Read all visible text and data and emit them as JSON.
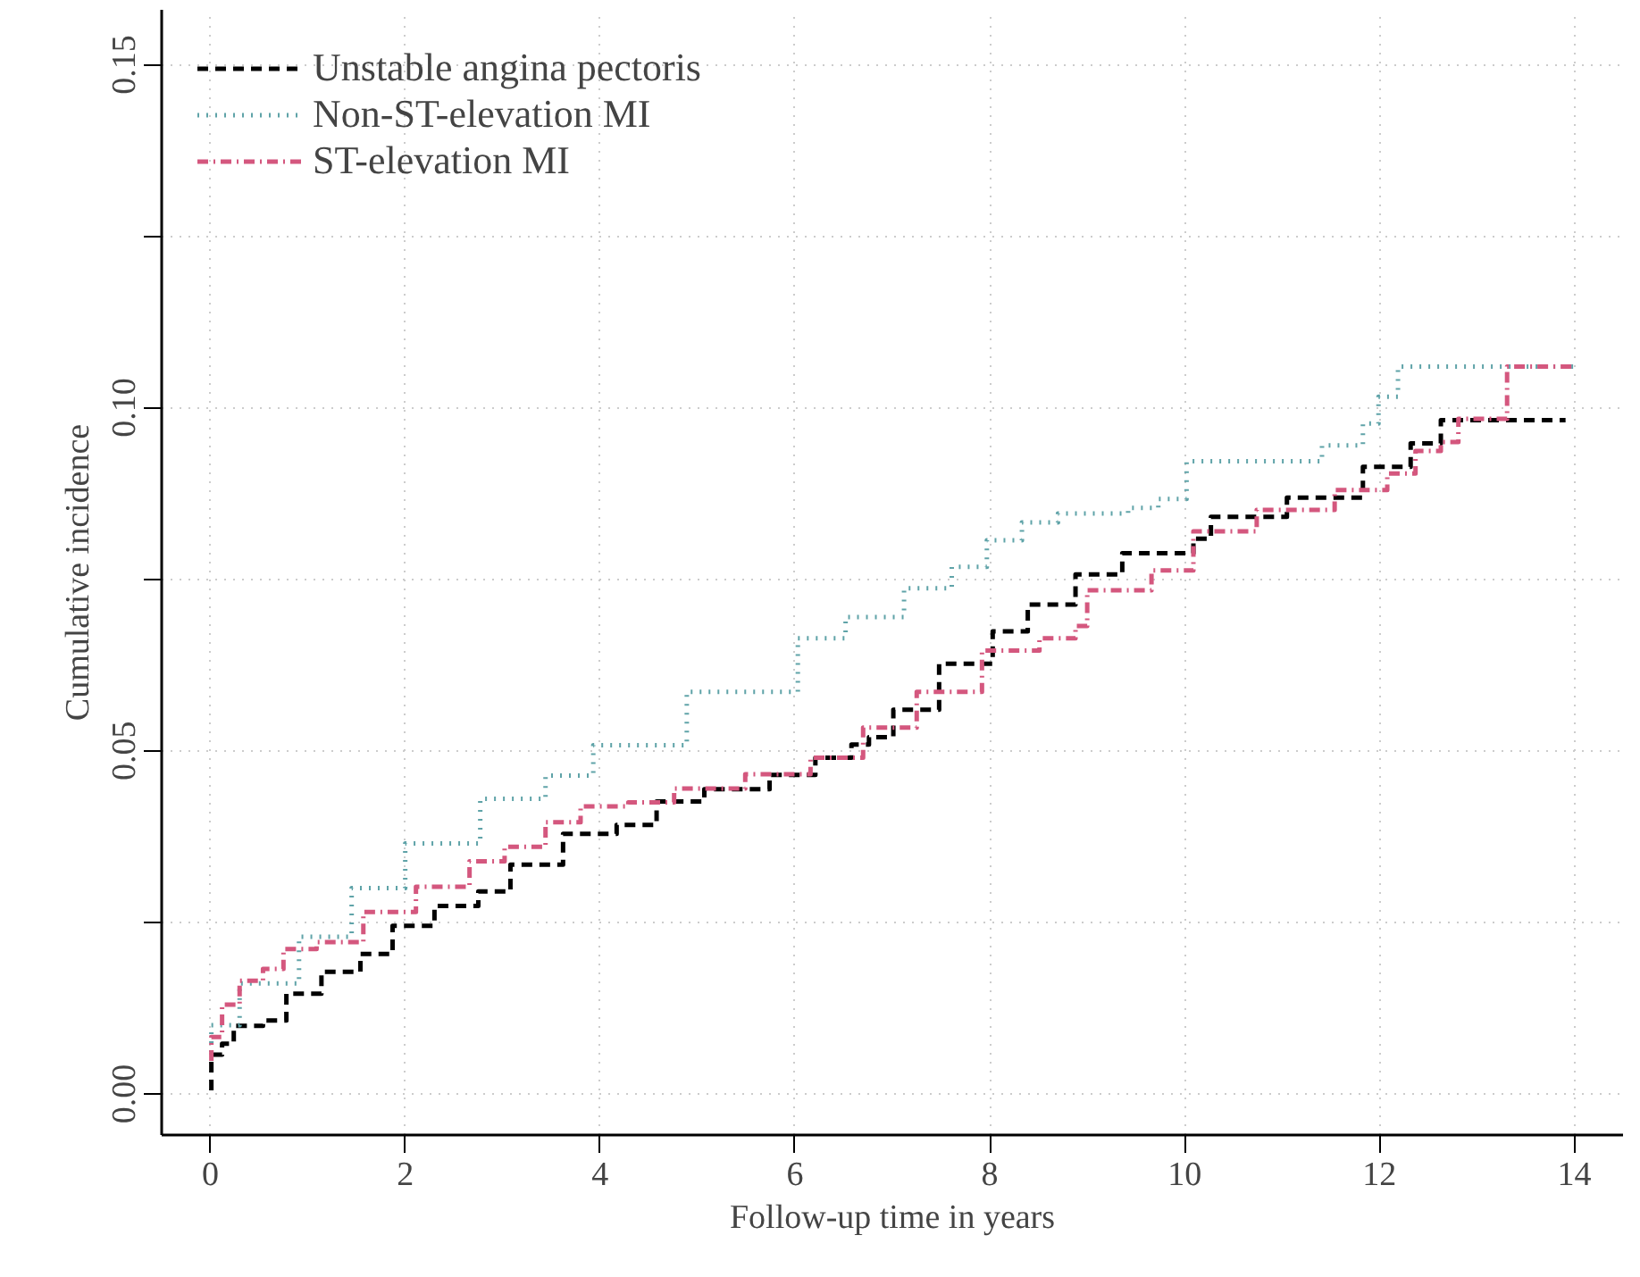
{
  "chart_data": {
    "type": "step",
    "xlabel": "Follow-up time in years",
    "ylabel": "Cumulative incidence",
    "xlim": [
      -0.5,
      14.5
    ],
    "ylim": [
      -0.006,
      0.158
    ],
    "xticks": [
      0,
      2,
      4,
      6,
      8,
      10,
      12,
      14
    ],
    "yticks": [
      {
        "value": 0,
        "label": "0.00"
      },
      {
        "value": 0.025,
        "label": null
      },
      {
        "value": 0.05,
        "label": "0.05"
      },
      {
        "value": 0.075,
        "label": null
      },
      {
        "value": 0.1,
        "label": "0.10"
      },
      {
        "value": 0.125,
        "label": null
      },
      {
        "value": 0.15,
        "label": "0.15"
      }
    ],
    "grid": true,
    "legend": "top left",
    "marker": "none",
    "series": [
      {
        "name": "Unstable angina pectoris",
        "color": "#000000",
        "line_style": "dashed",
        "x": [
          0.01,
          0.01,
          0.12,
          0.24,
          0.54,
          0.78,
          1.14,
          1.54,
          1.87,
          2.3,
          2.75,
          3.08,
          3.62,
          4.17,
          4.58,
          5.07,
          5.74,
          6.21,
          6.58,
          6.76,
          7.01,
          7.48,
          8.03,
          8.39,
          8.88,
          9.36,
          10.09,
          10.27,
          11.05,
          11.83,
          12.32,
          12.63,
          13.91
        ],
        "values": [
          0.0005,
          0.0057,
          0.0073,
          0.0099,
          0.0107,
          0.0146,
          0.0178,
          0.0204,
          0.0245,
          0.0274,
          0.0295,
          0.0334,
          0.0379,
          0.0392,
          0.0426,
          0.0444,
          0.0465,
          0.049,
          0.0509,
          0.052,
          0.056,
          0.0627,
          0.0674,
          0.0713,
          0.0757,
          0.0788,
          0.0809,
          0.0841,
          0.0869,
          0.0914,
          0.0948,
          0.0982,
          0.0982
        ]
      },
      {
        "name": "Non-ST-elevation MI",
        "color": "#5fa3a8",
        "line_style": "dotted",
        "x": [
          0.01,
          0.01,
          0.3,
          0.91,
          1.45,
          2.0,
          2.77,
          3.44,
          3.93,
          4.89,
          6.03,
          6.52,
          7.12,
          7.61,
          7.97,
          8.33,
          8.7,
          9.42,
          9.73,
          10.02,
          11.1,
          11.41,
          11.83,
          11.99,
          12.19,
          13.99
        ],
        "values": [
          0.0061,
          0.01,
          0.0161,
          0.0229,
          0.03,
          0.0365,
          0.043,
          0.0464,
          0.0508,
          0.0586,
          0.0664,
          0.0695,
          0.0737,
          0.0768,
          0.0807,
          0.0833,
          0.0846,
          0.0854,
          0.0867,
          0.0922,
          0.0922,
          0.0945,
          0.0977,
          0.1016,
          0.106,
          0.106
        ]
      },
      {
        "name": "ST-elevation MI",
        "color": "#d4577e",
        "line_style": "dashdot",
        "x": [
          0.01,
          0.01,
          0.12,
          0.3,
          0.54,
          0.75,
          1.09,
          1.57,
          2.11,
          2.66,
          3.02,
          3.44,
          3.8,
          4.29,
          4.76,
          5.49,
          6.16,
          6.7,
          7.25,
          7.92,
          8.51,
          8.88,
          9.0,
          9.66,
          10.09,
          10.74,
          11.54,
          12.08,
          12.37,
          12.63,
          12.81,
          13.22,
          13.31,
          13.99
        ],
        "values": [
          0.0048,
          0.0083,
          0.013,
          0.0165,
          0.0182,
          0.0211,
          0.0221,
          0.0265,
          0.0302,
          0.0339,
          0.036,
          0.0396,
          0.0419,
          0.0425,
          0.0445,
          0.0466,
          0.049,
          0.0534,
          0.0586,
          0.0646,
          0.0664,
          0.0682,
          0.0734,
          0.0763,
          0.082,
          0.0851,
          0.088,
          0.0904,
          0.0937,
          0.095,
          0.0984,
          0.0984,
          0.106,
          0.106
        ]
      }
    ]
  }
}
